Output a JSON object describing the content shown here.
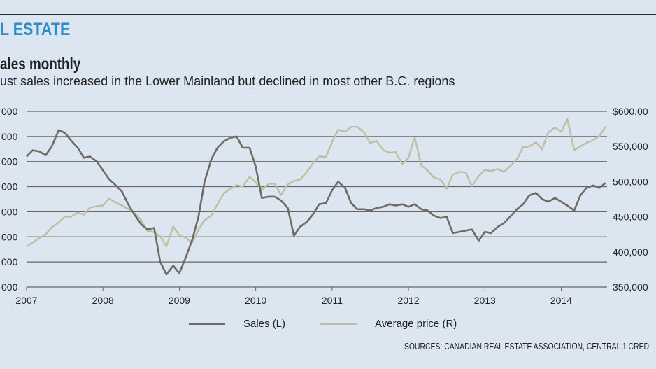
{
  "header": {
    "section": "L ESTATE",
    "title": "ales monthly",
    "subtitle": "ust sales increased in the Lower Mainland but declined in most other B.C. regions",
    "source": "SOURCES: CANADIAN REAL ESTATE ASSOCIATION, CENTRAL 1 CREDI"
  },
  "colors": {
    "background": "#dce6f0",
    "sales": "#6e6b63",
    "price": "#bdbfa0",
    "grid": "#666666",
    "accent": "#2a8fc8"
  },
  "chart_data": {
    "type": "line",
    "title": "ales monthly",
    "x_tick_labels": [
      "2007",
      "2008",
      "2009",
      "2010",
      "2011",
      "2012",
      "2013",
      "2014"
    ],
    "left_tick_labels": [
      "000",
      "000",
      "000",
      "000",
      "000",
      "000",
      "000",
      "000"
    ],
    "right_tick_labels": [
      "$600,00",
      "550,000",
      "500,000",
      "450,000",
      "400,000",
      "350,000"
    ],
    "left_ylim": [
      0,
      7
    ],
    "right_ylim": [
      350000,
      600000
    ],
    "xlim": [
      2007.0,
      2014.6
    ],
    "legend": {
      "position": "bottom",
      "entries": [
        "Sales (L)",
        "Average price (R)"
      ]
    },
    "series": [
      {
        "name": "Sales (L)",
        "axis": "left",
        "x": [
          2007.0,
          2007.08,
          2007.17,
          2007.25,
          2007.33,
          2007.42,
          2007.5,
          2007.58,
          2007.67,
          2007.75,
          2007.83,
          2007.92,
          2008.0,
          2008.08,
          2008.17,
          2008.25,
          2008.33,
          2008.42,
          2008.5,
          2008.58,
          2008.67,
          2008.75,
          2008.83,
          2008.92,
          2009.0,
          2009.08,
          2009.17,
          2009.25,
          2009.33,
          2009.42,
          2009.5,
          2009.58,
          2009.67,
          2009.75,
          2009.83,
          2009.92,
          2010.0,
          2010.08,
          2010.17,
          2010.25,
          2010.33,
          2010.42,
          2010.5,
          2010.58,
          2010.67,
          2010.75,
          2010.83,
          2010.92,
          2011.0,
          2011.08,
          2011.17,
          2011.25,
          2011.33,
          2011.42,
          2011.5,
          2011.58,
          2011.67,
          2011.75,
          2011.83,
          2011.92,
          2012.0,
          2012.08,
          2012.17,
          2012.25,
          2012.33,
          2012.42,
          2012.5,
          2012.58,
          2012.67,
          2012.75,
          2012.83,
          2012.92,
          2013.0,
          2013.08,
          2013.17,
          2013.25,
          2013.33,
          2013.42,
          2013.5,
          2013.58,
          2013.67,
          2013.75,
          2013.83,
          2013.92,
          2014.0,
          2014.08,
          2014.17,
          2014.25,
          2014.33,
          2014.42,
          2014.5,
          2014.58
        ],
        "values": [
          5.2,
          5.45,
          5.4,
          5.25,
          5.6,
          6.25,
          6.15,
          5.85,
          5.55,
          5.15,
          5.2,
          5.0,
          4.65,
          4.3,
          4.05,
          3.8,
          3.3,
          2.85,
          2.5,
          2.3,
          2.35,
          1.0,
          0.5,
          0.85,
          0.55,
          1.15,
          1.9,
          2.8,
          4.2,
          5.1,
          5.55,
          5.8,
          5.95,
          6.0,
          5.55,
          5.55,
          4.8,
          3.55,
          3.6,
          3.6,
          3.45,
          3.15,
          2.05,
          2.4,
          2.6,
          2.9,
          3.3,
          3.35,
          3.85,
          4.2,
          3.95,
          3.35,
          3.1,
          3.1,
          3.05,
          3.15,
          3.2,
          3.3,
          3.25,
          3.3,
          3.2,
          3.3,
          3.1,
          3.05,
          2.85,
          2.75,
          2.8,
          2.15,
          2.2,
          2.25,
          2.3,
          1.85,
          2.2,
          2.15,
          2.4,
          2.55,
          2.8,
          3.1,
          3.3,
          3.65,
          3.75,
          3.5,
          3.4,
          3.55,
          3.4,
          3.25,
          3.05,
          3.65,
          3.95,
          4.05,
          3.95,
          4.15
        ]
      },
      {
        "name": "Average price (R)",
        "axis": "right",
        "x": [
          2007.0,
          2007.08,
          2007.17,
          2007.25,
          2007.33,
          2007.42,
          2007.5,
          2007.58,
          2007.67,
          2007.75,
          2007.83,
          2007.92,
          2008.0,
          2008.08,
          2008.17,
          2008.25,
          2008.33,
          2008.42,
          2008.5,
          2008.58,
          2008.67,
          2008.75,
          2008.83,
          2008.92,
          2009.0,
          2009.08,
          2009.17,
          2009.25,
          2009.33,
          2009.42,
          2009.5,
          2009.58,
          2009.67,
          2009.75,
          2009.83,
          2009.92,
          2010.0,
          2010.08,
          2010.17,
          2010.25,
          2010.33,
          2010.42,
          2010.5,
          2010.58,
          2010.67,
          2010.75,
          2010.83,
          2010.92,
          2011.0,
          2011.08,
          2011.17,
          2011.25,
          2011.33,
          2011.42,
          2011.5,
          2011.58,
          2011.67,
          2011.75,
          2011.83,
          2011.92,
          2012.0,
          2012.08,
          2012.17,
          2012.25,
          2012.33,
          2012.42,
          2012.5,
          2012.58,
          2012.67,
          2012.75,
          2012.83,
          2012.92,
          2013.0,
          2013.08,
          2013.17,
          2013.25,
          2013.33,
          2013.42,
          2013.5,
          2013.58,
          2013.67,
          2013.75,
          2013.83,
          2013.92,
          2014.0,
          2014.08,
          2014.17,
          2014.25,
          2014.33,
          2014.42,
          2014.5,
          2014.58
        ],
        "values": [
          408000,
          413000,
          420000,
          425000,
          435000,
          442000,
          450000,
          450000,
          456000,
          453000,
          463000,
          465000,
          466000,
          476000,
          470000,
          466000,
          461000,
          455000,
          445000,
          430000,
          428000,
          422000,
          408000,
          436000,
          424000,
          420000,
          413000,
          432000,
          445000,
          452000,
          468000,
          483000,
          490000,
          495000,
          493000,
          507000,
          499000,
          488000,
          497000,
          497000,
          481000,
          496000,
          501000,
          503000,
          514000,
          526000,
          536000,
          535000,
          556000,
          574000,
          571000,
          578000,
          578000,
          570000,
          555000,
          558000,
          545000,
          541000,
          542000,
          525000,
          534000,
          563000,
          523000,
          516000,
          506000,
          503000,
          490000,
          510000,
          514000,
          513000,
          493000,
          508000,
          517000,
          515000,
          518000,
          514000,
          522000,
          532000,
          549000,
          550000,
          556000,
          546000,
          570000,
          577000,
          571000,
          589000,
          545000,
          550000,
          555000,
          559000,
          565000,
          578000
        ]
      }
    ]
  }
}
